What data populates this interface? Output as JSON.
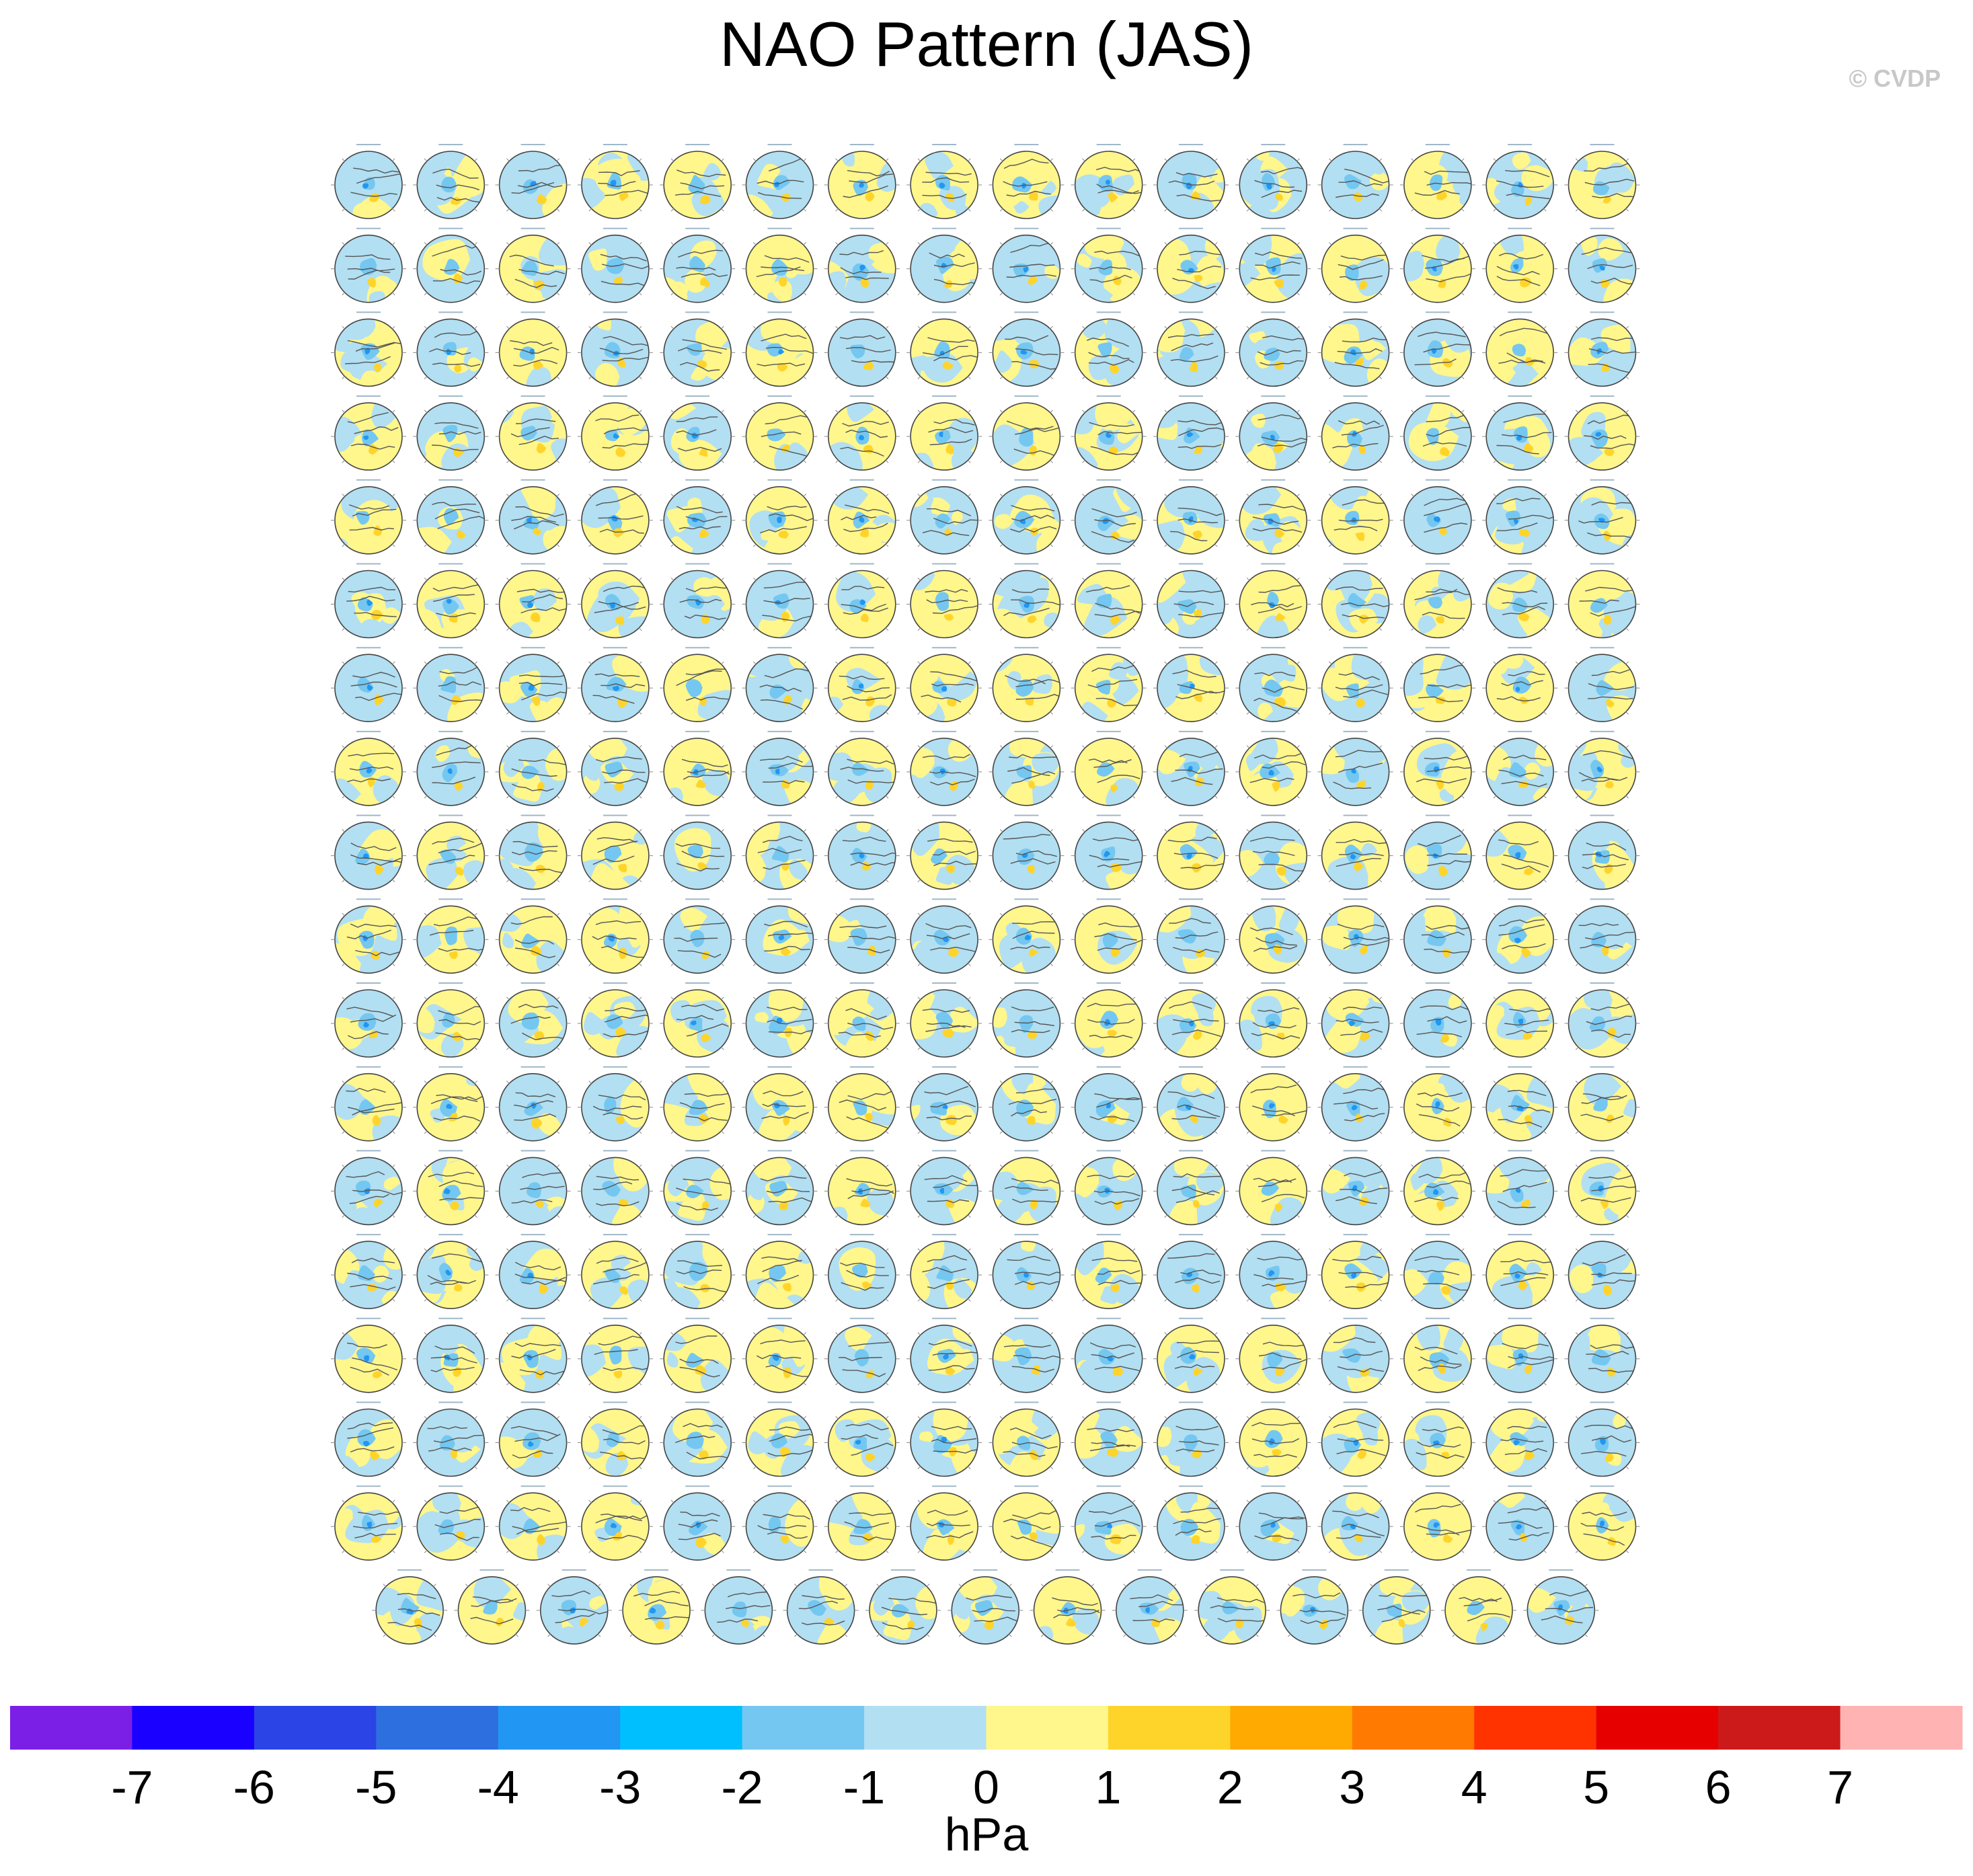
{
  "title": "NAO Pattern (JAS)",
  "copyright": "© CVDP",
  "chart_data": {
    "type": "heatmap",
    "title": "NAO Pattern (JAS)",
    "description_panels": {
      "rows": 18,
      "full_row_columns": 16,
      "last_row_columns": 15,
      "projection": "north-polar-stereographic"
    },
    "colorbar": {
      "label": "hPa",
      "tick_labels": [
        "-7",
        "-6",
        "-5",
        "-4",
        "-3",
        "-2",
        "-1",
        "0",
        "1",
        "2",
        "3",
        "4",
        "5",
        "6",
        "7"
      ],
      "colors": [
        "#7c1fe6",
        "#1a00ff",
        "#2b44e6",
        "#2e6fe0",
        "#2196f3",
        "#00bfff",
        "#74c7f0",
        "#b2dff2",
        "#fff68c",
        "#ffd42a",
        "#ffaa00",
        "#ff7a00",
        "#ff3300",
        "#e60000",
        "#cc1a1a",
        "#ffb3b3"
      ]
    }
  }
}
